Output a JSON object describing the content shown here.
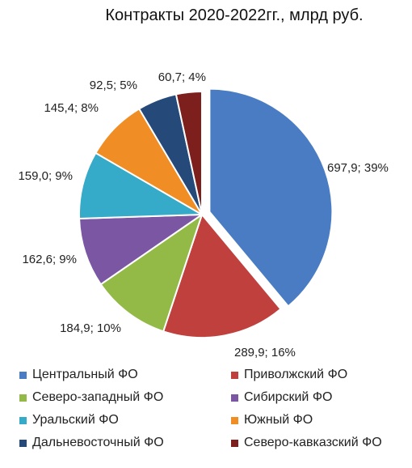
{
  "chart_data": {
    "type": "pie",
    "title": "Контракты 2020-2022гг., млрд руб.",
    "slices": [
      {
        "name": "Центральный ФО",
        "value": 697.9,
        "label": "697,9; 39%",
        "color": "#4a7cc4",
        "exploded": true
      },
      {
        "name": "Приволжский ФО",
        "value": 289.9,
        "label": "289,9; 16%",
        "color": "#c0403e"
      },
      {
        "name": "Северо-западный ФО",
        "value": 184.9,
        "label": "184,9; 10%",
        "color": "#93b947"
      },
      {
        "name": "Сибирский ФО",
        "value": 162.6,
        "label": "162,6; 9%",
        "color": "#7a56a3"
      },
      {
        "name": "Уральский ФО",
        "value": 159.0,
        "label": "159,0; 9%",
        "color": "#36aac9"
      },
      {
        "name": "Южный ФО",
        "value": 145.4,
        "label": "145,4; 8%",
        "color": "#f08d24"
      },
      {
        "name": "Дальневосточный ФО",
        "value": 92.5,
        "label": "92,5; 5%",
        "color": "#254a7a"
      },
      {
        "name": "Северо-кавказский ФО",
        "value": 60.7,
        "label": "60,7; 4%",
        "color": "#7d1f1c"
      }
    ],
    "legend_placement": "bottom"
  }
}
